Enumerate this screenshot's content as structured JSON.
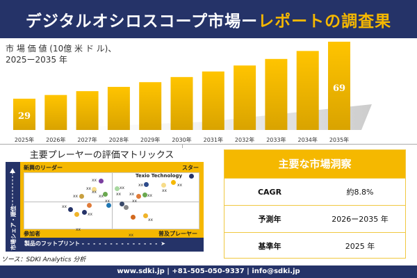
{
  "header": {
    "title_main": "デジタルオシロスコープ市場ー",
    "title_accent": "レポートの調査果"
  },
  "chart_data": {
    "type": "bar",
    "title": "市場価値（10億米ドル）、2025ー2035年",
    "ylabel_line1": "市 場 価 値  (10億 米 ド ル)、",
    "ylabel_line2": "2025ー2035 年",
    "categories": [
      "2025年",
      "2026年",
      "2027年",
      "2028年",
      "2029年",
      "2030年",
      "2031年",
      "2032年",
      "2033年",
      "2034年",
      "2035年"
    ],
    "values": [
      29,
      31.6,
      34.3,
      37.3,
      40.6,
      44.2,
      48.1,
      52.3,
      56.9,
      62.5,
      69
    ],
    "data_labels": {
      "0": "29",
      "10": "69"
    },
    "bar_color": "#f5b800",
    "grid": false
  },
  "matrix": {
    "title": "主要プレーヤーの評価マトリックス",
    "q_tl": "新興のリーダー",
    "q_tr": "スター",
    "q_bl": "参加者",
    "q_br": "普及プレーヤー",
    "yaxis": "市場シェア・順位",
    "xaxis": "製品のフットプリント",
    "highlight": "Texio Technology",
    "player_label": "xx"
  },
  "insights": {
    "title": "主要な市場洞察",
    "rows": [
      {
        "k": "CAGR",
        "v": "約8.8%"
      },
      {
        "k": "予測年",
        "v": "2026ー2035 年"
      },
      {
        "k": "基準年",
        "v": "2025 年"
      }
    ]
  },
  "source": "ソース：SDKI Analytics 分析",
  "footer": "www.sdki.jp | +81-505-050-9337 | info@sdki.jp"
}
